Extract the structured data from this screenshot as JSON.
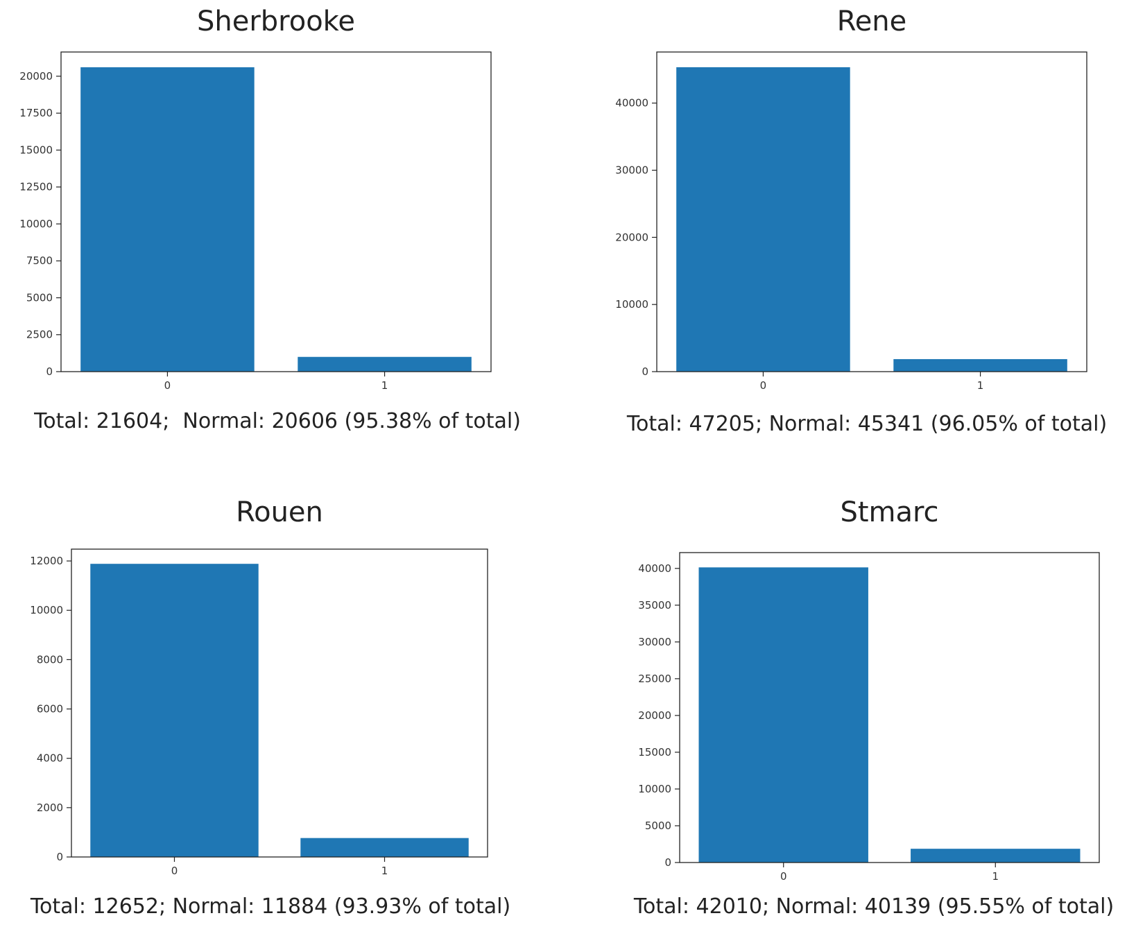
{
  "colors": {
    "bar": "#1f77b4",
    "axis": "#222222",
    "text": "#222222"
  },
  "chart_data": [
    {
      "type": "bar",
      "title": "Sherbrooke",
      "caption": "Total: 21604;  Normal: 20606 (95.38% of total)",
      "categories": [
        "0",
        "1"
      ],
      "values": [
        20606,
        998
      ],
      "ylim": [
        0,
        21640
      ],
      "yticks": [
        0,
        2500,
        5000,
        7500,
        10000,
        12500,
        15000,
        17500,
        20000
      ],
      "grid": false,
      "legend": "none"
    },
    {
      "type": "bar",
      "title": "Rene",
      "caption": "Total: 47205; Normal: 45341 (96.05% of total)",
      "categories": [
        "0",
        "1"
      ],
      "values": [
        45341,
        1864
      ],
      "ylim": [
        0,
        47610
      ],
      "yticks": [
        0,
        10000,
        20000,
        30000,
        40000
      ],
      "grid": false,
      "legend": "none"
    },
    {
      "type": "bar",
      "title": "Rouen",
      "caption": "Total: 12652; Normal: 11884 (93.93% of total)",
      "categories": [
        "0",
        "1"
      ],
      "values": [
        11884,
        768
      ],
      "ylim": [
        0,
        12480
      ],
      "yticks": [
        0,
        2000,
        4000,
        6000,
        8000,
        10000,
        12000
      ],
      "grid": false,
      "legend": "none"
    },
    {
      "type": "bar",
      "title": "Stmarc",
      "caption": "Total: 42010; Normal: 40139 (95.55% of total)",
      "categories": [
        "0",
        "1"
      ],
      "values": [
        40139,
        1871
      ],
      "ylim": [
        0,
        42150
      ],
      "yticks": [
        0,
        5000,
        10000,
        15000,
        20000,
        25000,
        30000,
        35000,
        40000
      ],
      "grid": false,
      "legend": "none"
    }
  ]
}
